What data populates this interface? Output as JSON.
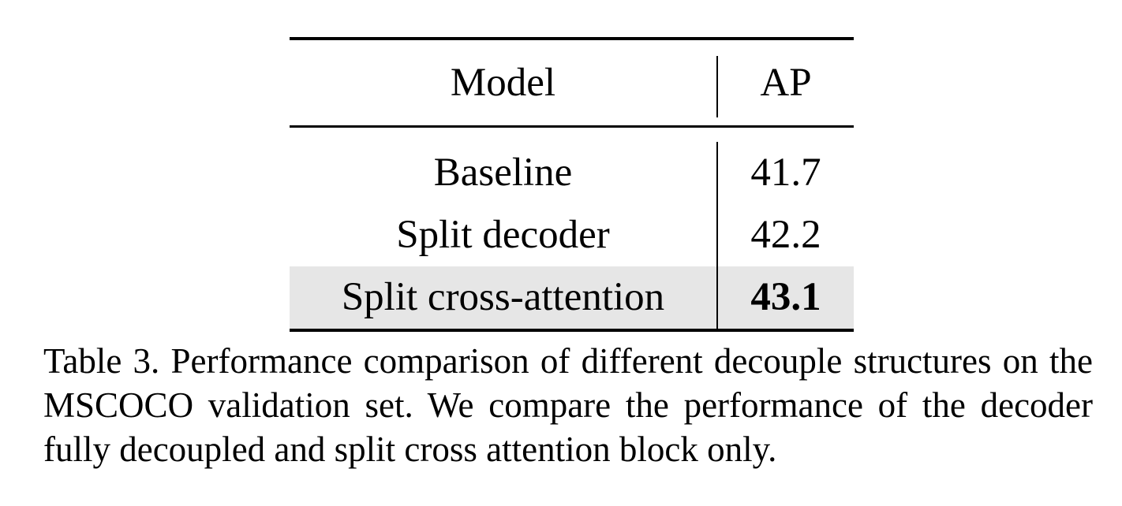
{
  "table": {
    "headers": {
      "model": "Model",
      "ap": "AP"
    },
    "rows": [
      {
        "model": "Baseline",
        "ap": "41.7"
      },
      {
        "model": "Split decoder",
        "ap": "42.2"
      },
      {
        "model": "Split cross-attention",
        "ap": "43.1"
      }
    ],
    "highlight_color": "#e6e6e6"
  },
  "caption": {
    "text": "Table 3. Performance comparison of different decouple structures on the MSCOCO validation set. We compare the performance of the decoder fully decoupled and split cross attention block only."
  }
}
